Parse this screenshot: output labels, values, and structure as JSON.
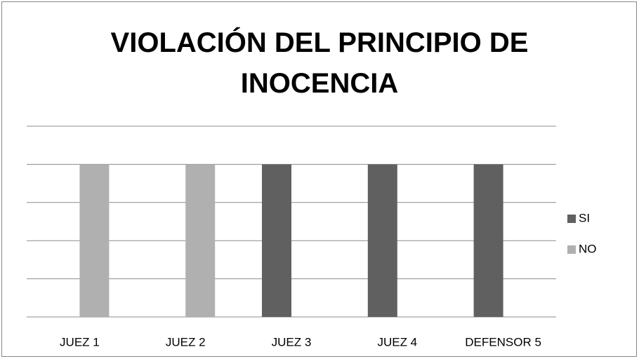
{
  "chart_data": {
    "type": "bar",
    "title": "VIOLACIÓN DEL PRINCIPIO DE INOCENCIA",
    "categories": [
      "JUEZ 1",
      "JUEZ 2",
      "JUEZ 3",
      "JUEZ 4",
      "DEFENSOR 5"
    ],
    "series": [
      {
        "name": "SI",
        "color": "#606060",
        "values": [
          null,
          null,
          1,
          1,
          1
        ]
      },
      {
        "name": "NO",
        "color": "#b0b0b0",
        "values": [
          1,
          1,
          null,
          null,
          null
        ]
      }
    ],
    "ylim": [
      0,
      1.25
    ],
    "yticks": [
      0,
      0.25,
      0.5,
      0.75,
      1,
      1.25
    ],
    "grid": true,
    "legend": "right"
  }
}
